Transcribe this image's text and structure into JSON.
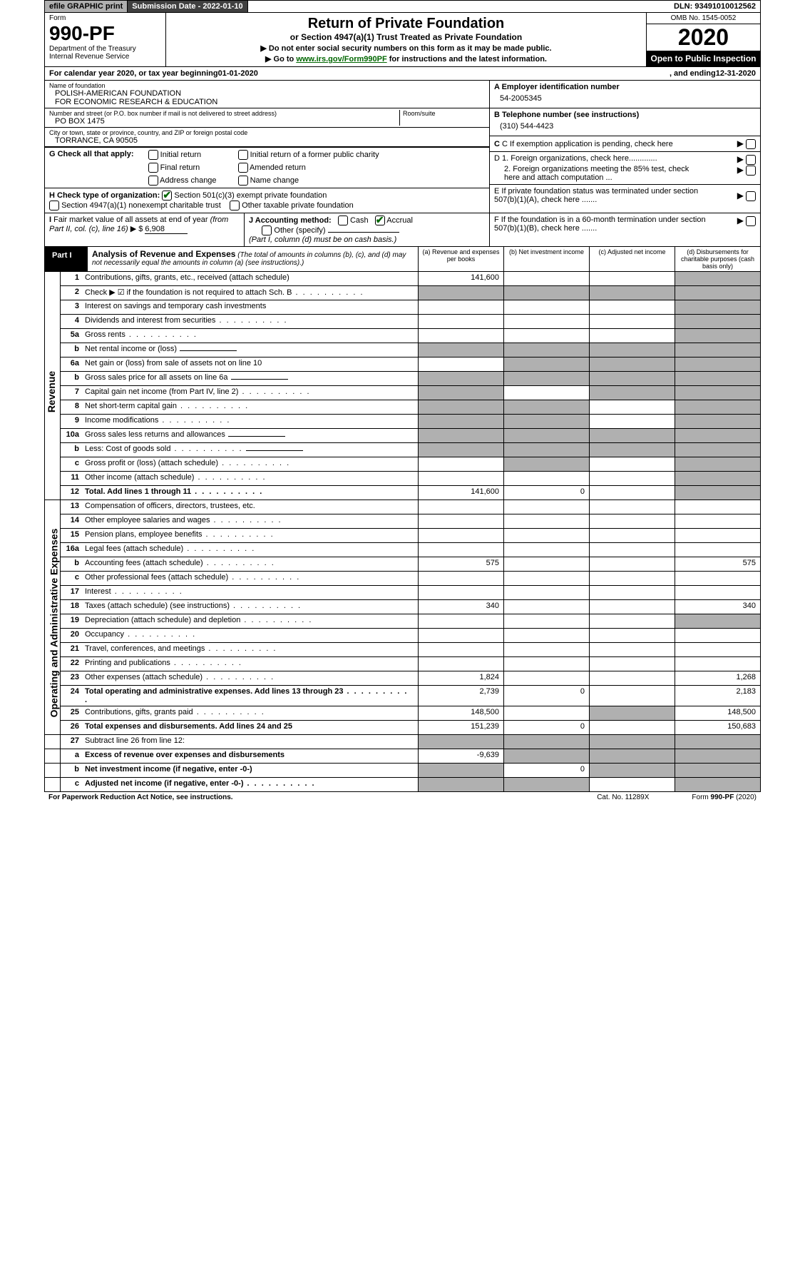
{
  "topbar": {
    "efile": "efile GRAPHIC print",
    "submission": "Submission Date - 2022-01-10",
    "dln": "DLN: 93491010012562"
  },
  "header": {
    "form_label": "Form",
    "form_num": "990-PF",
    "dept": "Department of the Treasury\nInternal Revenue Service",
    "title": "Return of Private Foundation",
    "subtitle": "or Section 4947(a)(1) Trust Treated as Private Foundation",
    "note1": "▶ Do not enter social security numbers on this form as it may be made public.",
    "note2_prefix": "▶ Go to ",
    "note2_link": "www.irs.gov/Form990PF",
    "note2_suffix": " for instructions and the latest information.",
    "omb": "OMB No. 1545-0052",
    "year": "2020",
    "open": "Open to Public Inspection"
  },
  "calendar": {
    "prefix": "For calendar year 2020, or tax year beginning ",
    "begin": "01-01-2020",
    "mid": ", and ending ",
    "end": "12-31-2020"
  },
  "info": {
    "name_label": "Name of foundation",
    "name": "POLISH-AMERICAN FOUNDATION\nFOR ECONOMIC RESEARCH & EDUCATION",
    "addr_label": "Number and street (or P.O. box number if mail is not delivered to street address)",
    "addr": "PO BOX 1475",
    "room_label": "Room/suite",
    "city_label": "City or town, state or province, country, and ZIP or foreign postal code",
    "city": "TORRANCE, CA  90505",
    "a_label": "A Employer identification number",
    "a_val": "54-2005345",
    "b_label": "B Telephone number (see instructions)",
    "b_val": "(310) 544-4423",
    "c_label": "C If exemption application is pending, check here",
    "d1_label": "D 1. Foreign organizations, check here.............",
    "d2_label": "2. Foreign organizations meeting the 85% test, check here and attach computation ...",
    "e_label": "E  If private foundation status was terminated under section 507(b)(1)(A), check here .......",
    "f_label": "F  If the foundation is in a 60-month termination under section 507(b)(1)(B), check here ......."
  },
  "g": {
    "label": "G Check all that apply:",
    "opts": [
      "Initial return",
      "Initial return of a former public charity",
      "Final return",
      "Amended return",
      "Address change",
      "Name change"
    ]
  },
  "h": {
    "label": "H Check type of organization:",
    "opt1": "Section 501(c)(3) exempt private foundation",
    "opt2": "Section 4947(a)(1) nonexempt charitable trust",
    "opt3": "Other taxable private foundation"
  },
  "i": {
    "label": "I Fair market value of all assets at end of year (from Part II, col. (c), line 16) ▶ $",
    "val": "6,908"
  },
  "j": {
    "label": "J Accounting method:",
    "cash": "Cash",
    "accrual": "Accrual",
    "other": "Other (specify)",
    "note": "(Part I, column (d) must be on cash basis.)"
  },
  "part1": {
    "label": "Part I",
    "title": "Analysis of Revenue and Expenses",
    "subtitle": "(The total of amounts in columns (b), (c), and (d) may not necessarily equal the amounts in column (a) (see instructions).)",
    "col_a": "(a)   Revenue and expenses per books",
    "col_b": "(b)   Net investment income",
    "col_c": "(c)   Adjusted net income",
    "col_d": "(d)   Disbursements for charitable purposes (cash basis only)"
  },
  "sides": {
    "revenue": "Revenue",
    "expenses": "Operating and Administrative Expenses"
  },
  "lines": {
    "1": {
      "desc": "Contributions, gifts, grants, etc., received (attach schedule)",
      "a": "141,600"
    },
    "2": {
      "desc": "Check ▶ ☑ if the foundation is not required to attach Sch. B"
    },
    "3": {
      "desc": "Interest on savings and temporary cash investments"
    },
    "4": {
      "desc": "Dividends and interest from securities"
    },
    "5a": {
      "desc": "Gross rents"
    },
    "5b": {
      "desc": "Net rental income or (loss)"
    },
    "6a": {
      "desc": "Net gain or (loss) from sale of assets not on line 10"
    },
    "6b": {
      "desc": "Gross sales price for all assets on line 6a"
    },
    "7": {
      "desc": "Capital gain net income (from Part IV, line 2)"
    },
    "8": {
      "desc": "Net short-term capital gain"
    },
    "9": {
      "desc": "Income modifications"
    },
    "10a": {
      "desc": "Gross sales less returns and allowances"
    },
    "10b": {
      "desc": "Less: Cost of goods sold"
    },
    "10c": {
      "desc": "Gross profit or (loss) (attach schedule)"
    },
    "11": {
      "desc": "Other income (attach schedule)"
    },
    "12": {
      "desc": "Total. Add lines 1 through 11",
      "a": "141,600",
      "b": "0"
    },
    "13": {
      "desc": "Compensation of officers, directors, trustees, etc."
    },
    "14": {
      "desc": "Other employee salaries and wages"
    },
    "15": {
      "desc": "Pension plans, employee benefits"
    },
    "16a": {
      "desc": "Legal fees (attach schedule)"
    },
    "16b": {
      "desc": "Accounting fees (attach schedule)",
      "a": "575",
      "d": "575"
    },
    "16c": {
      "desc": "Other professional fees (attach schedule)"
    },
    "17": {
      "desc": "Interest"
    },
    "18": {
      "desc": "Taxes (attach schedule) (see instructions)",
      "a": "340",
      "d": "340"
    },
    "19": {
      "desc": "Depreciation (attach schedule) and depletion"
    },
    "20": {
      "desc": "Occupancy"
    },
    "21": {
      "desc": "Travel, conferences, and meetings"
    },
    "22": {
      "desc": "Printing and publications"
    },
    "23": {
      "desc": "Other expenses (attach schedule)",
      "a": "1,824",
      "d": "1,268"
    },
    "24": {
      "desc": "Total operating and administrative expenses. Add lines 13 through 23",
      "a": "2,739",
      "b": "0",
      "d": "2,183"
    },
    "25": {
      "desc": "Contributions, gifts, grants paid",
      "a": "148,500",
      "d": "148,500"
    },
    "26": {
      "desc": "Total expenses and disbursements. Add lines 24 and 25",
      "a": "151,239",
      "b": "0",
      "d": "150,683"
    },
    "27": {
      "desc": "Subtract line 26 from line 12:"
    },
    "27a": {
      "desc": "Excess of revenue over expenses and disbursements",
      "a": "-9,639"
    },
    "27b": {
      "desc": "Net investment income (if negative, enter -0-)",
      "b": "0"
    },
    "27c": {
      "desc": "Adjusted net income (if negative, enter -0-)"
    }
  },
  "footer": {
    "left": "For Paperwork Reduction Act Notice, see instructions.",
    "center": "Cat. No. 11289X",
    "right": "Form 990-PF (2020)"
  }
}
